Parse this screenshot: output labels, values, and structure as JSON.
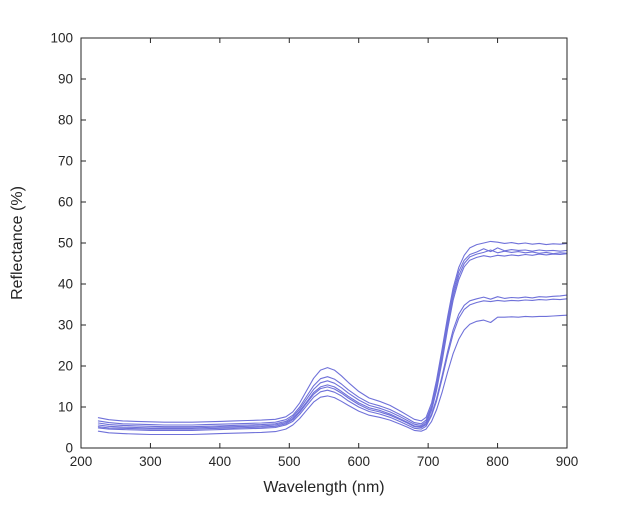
{
  "figure": {
    "background": "#ffffff",
    "axis_color": "#262626",
    "text_color": "#262626"
  },
  "chart_data": {
    "type": "line",
    "title": "",
    "xlabel": "Wavelength (nm)",
    "ylabel": "Reflectance (%)",
    "xlim": [
      200,
      900
    ],
    "ylim": [
      0,
      100
    ],
    "xticks": [
      200,
      300,
      400,
      500,
      600,
      700,
      800,
      900
    ],
    "yticks": [
      0,
      10,
      20,
      30,
      40,
      50,
      60,
      70,
      80,
      90,
      100
    ],
    "grid": false,
    "legend_position": "none",
    "line_color": "#6f71d9",
    "x": [
      225,
      240,
      260,
      280,
      300,
      320,
      340,
      360,
      380,
      400,
      420,
      440,
      460,
      480,
      495,
      505,
      515,
      525,
      535,
      545,
      555,
      565,
      575,
      585,
      600,
      615,
      630,
      645,
      660,
      670,
      680,
      690,
      697,
      705,
      712,
      720,
      728,
      736,
      744,
      752,
      760,
      770,
      780,
      790,
      800,
      810,
      820,
      830,
      840,
      850,
      860,
      870,
      880,
      890,
      900
    ],
    "series": [
      {
        "name": "curve-1",
        "values": [
          7.4,
          6.9,
          6.6,
          6.5,
          6.4,
          6.3,
          6.3,
          6.3,
          6.4,
          6.5,
          6.6,
          6.7,
          6.8,
          7.0,
          7.6,
          8.8,
          11.0,
          14.0,
          17.0,
          19.0,
          19.6,
          19.0,
          17.6,
          16.0,
          13.8,
          12.2,
          11.4,
          10.4,
          9.0,
          8.0,
          7.0,
          6.6,
          7.5,
          11.0,
          16.5,
          24.0,
          32.0,
          39.0,
          44.0,
          47.0,
          48.8,
          49.6,
          50.0,
          50.4,
          50.2,
          49.9,
          50.1,
          49.8,
          50.0,
          49.7,
          49.9,
          49.6,
          49.8,
          49.7,
          49.9
        ]
      },
      {
        "name": "curve-2",
        "values": [
          6.6,
          6.2,
          5.9,
          5.8,
          5.7,
          5.6,
          5.6,
          5.6,
          5.7,
          5.8,
          5.9,
          6.0,
          6.1,
          6.3,
          6.9,
          8.0,
          10.0,
          12.6,
          15.2,
          16.9,
          17.4,
          16.8,
          15.6,
          14.2,
          12.4,
          11.0,
          10.3,
          9.4,
          8.1,
          7.2,
          6.2,
          5.9,
          6.8,
          10.2,
          15.5,
          23.0,
          31.0,
          38.0,
          43.0,
          45.8,
          47.2,
          47.8,
          48.6,
          47.9,
          48.8,
          48.1,
          48.4,
          48.2,
          48.3,
          48.0,
          48.3,
          48.1,
          48.2,
          48.0,
          48.2
        ]
      },
      {
        "name": "curve-3",
        "values": [
          6.1,
          5.7,
          5.5,
          5.4,
          5.3,
          5.2,
          5.2,
          5.2,
          5.3,
          5.4,
          5.5,
          5.6,
          5.7,
          5.9,
          6.5,
          7.6,
          9.5,
          11.9,
          14.3,
          15.9,
          16.4,
          15.8,
          14.7,
          13.4,
          11.7,
          10.4,
          9.7,
          8.8,
          7.6,
          6.7,
          5.8,
          5.5,
          6.4,
          9.7,
          14.8,
          22.0,
          30.0,
          37.0,
          42.0,
          45.0,
          46.6,
          47.3,
          47.7,
          48.3,
          47.6,
          48.0,
          47.7,
          47.9,
          47.6,
          47.8,
          47.5,
          47.7,
          47.4,
          47.6,
          47.5
        ]
      },
      {
        "name": "curve-4",
        "values": [
          5.6,
          5.3,
          5.1,
          5.0,
          4.9,
          4.9,
          4.9,
          4.9,
          5.0,
          5.1,
          5.2,
          5.3,
          5.4,
          5.6,
          6.2,
          7.2,
          9.0,
          11.2,
          13.5,
          14.9,
          15.4,
          14.9,
          13.8,
          12.6,
          11.0,
          9.8,
          9.2,
          8.3,
          7.1,
          6.3,
          5.4,
          5.2,
          6.0,
          9.2,
          14.0,
          21.0,
          29.0,
          36.0,
          41.0,
          44.2,
          45.8,
          46.5,
          46.9,
          46.6,
          47.0,
          46.8,
          47.1,
          46.9,
          47.2,
          47.0,
          47.3,
          47.1,
          47.3,
          47.2,
          47.4
        ]
      },
      {
        "name": "curve-5",
        "values": [
          5.2,
          4.9,
          4.8,
          4.7,
          4.6,
          4.6,
          4.6,
          4.6,
          4.7,
          4.8,
          4.9,
          5.0,
          5.1,
          5.3,
          5.9,
          6.9,
          8.7,
          10.9,
          13.1,
          14.5,
          14.9,
          14.4,
          13.4,
          12.2,
          10.6,
          9.4,
          8.8,
          8.0,
          6.9,
          6.1,
          5.2,
          5.0,
          5.7,
          8.3,
          12.0,
          17.5,
          23.5,
          28.8,
          32.6,
          34.8,
          35.9,
          36.4,
          36.8,
          36.3,
          36.9,
          36.5,
          36.7,
          36.6,
          36.8,
          36.6,
          36.9,
          36.8,
          37.0,
          37.1,
          37.3
        ]
      },
      {
        "name": "curve-6",
        "values": [
          4.9,
          4.6,
          4.5,
          4.4,
          4.3,
          4.3,
          4.3,
          4.3,
          4.4,
          4.5,
          4.6,
          4.7,
          4.8,
          5.0,
          5.6,
          6.5,
          8.2,
          10.3,
          12.4,
          13.7,
          14.1,
          13.6,
          12.7,
          11.5,
          10.0,
          8.9,
          8.3,
          7.5,
          6.4,
          5.6,
          4.8,
          4.6,
          5.3,
          7.9,
          11.4,
          16.8,
          22.6,
          27.8,
          31.6,
          33.8,
          34.9,
          35.5,
          35.9,
          35.7,
          36.0,
          35.8,
          36.0,
          35.9,
          36.1,
          36.0,
          36.2,
          36.1,
          36.3,
          36.2,
          36.4
        ]
      },
      {
        "name": "curve-7",
        "values": [
          4.1,
          3.7,
          3.5,
          3.4,
          3.3,
          3.3,
          3.3,
          3.3,
          3.4,
          3.5,
          3.6,
          3.7,
          3.8,
          4.0,
          4.6,
          5.6,
          7.2,
          9.2,
          11.2,
          12.4,
          12.7,
          12.3,
          11.4,
          10.4,
          9.0,
          8.0,
          7.5,
          6.8,
          5.8,
          5.1,
          4.3,
          4.1,
          4.6,
          6.5,
          9.3,
          13.5,
          18.5,
          23.0,
          26.5,
          28.8,
          30.2,
          30.9,
          31.2,
          30.6,
          31.9,
          31.9,
          32.0,
          31.9,
          32.1,
          32.0,
          32.1,
          32.1,
          32.2,
          32.3,
          32.4
        ]
      }
    ]
  }
}
